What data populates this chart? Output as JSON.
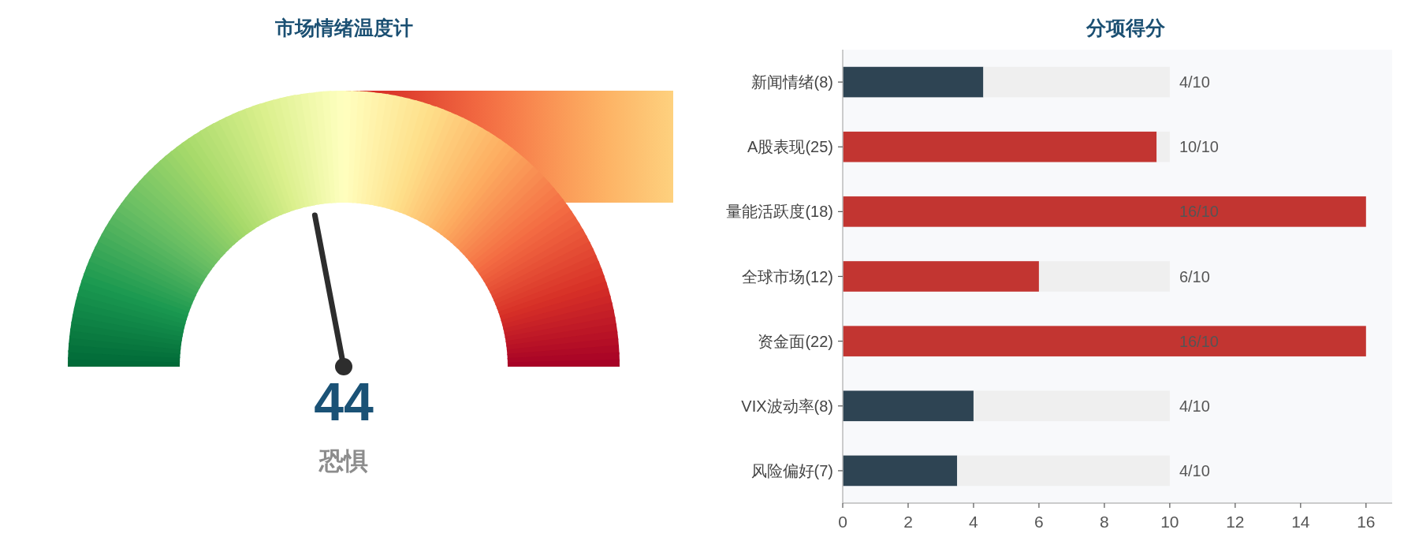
{
  "chart_data": [
    {
      "type": "other",
      "title": "市场情绪温度计",
      "values": [
        44
      ],
      "data_labels": true,
      "annotations": [
        "恐惧"
      ]
    },
    {
      "type": "bar",
      "title": "分项得分",
      "orientation": "horizontal",
      "stacked": true,
      "categories": [
        "新闻情绪(8)",
        "A股表现(25)",
        "量能活跃度(18)",
        "全球市场(12)",
        "资金面(22)",
        "VIX波动率(8)",
        "风险偏好(7)"
      ],
      "series": [
        {
          "colors": [
            "#2e4453",
            "#c23531",
            "#c23531",
            "#c23531",
            "#c23531",
            "#2e4453",
            "#2e4453"
          ],
          "values": [
            4.3,
            9.6,
            16,
            6.0,
            16,
            4.0,
            3.5
          ]
        },
        {
          "color": "#efefef",
          "values": [
            5.7,
            0.4,
            null,
            4.0,
            null,
            6.0,
            6.5
          ]
        }
      ],
      "annotations": [
        "4/10",
        "10/10",
        "16/10",
        "6/10",
        "16/10",
        "4/10",
        "4/10"
      ],
      "xlim": [
        0,
        16.8
      ],
      "xticks": [
        0,
        2,
        4,
        6,
        8,
        10,
        12,
        14,
        16
      ]
    }
  ]
}
